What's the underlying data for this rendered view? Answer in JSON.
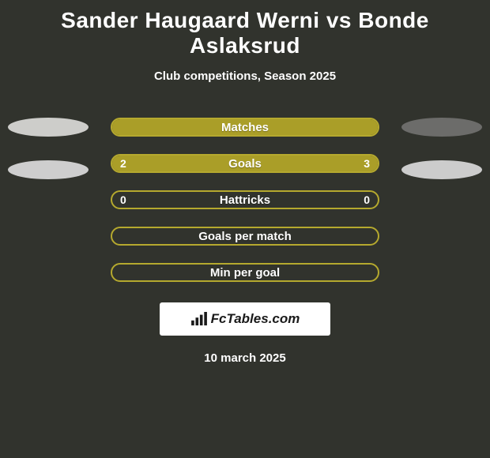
{
  "title": "Sander Haugaard Werni vs Bonde Aslaksrud",
  "subtitle": "Club competitions, Season 2025",
  "date": "10 march 2025",
  "watermark_text": "FcTables.com",
  "colors": {
    "bg": "#31332d",
    "ellipse_left_top": "#cdcdca",
    "ellipse_left_bottom": "#cecece",
    "ellipse_right_top": "#6c6c6a",
    "ellipse_right_bottom": "#cccccc",
    "bar_fill": "#aa9e28",
    "bar_border": "#b5a92e",
    "text": "#ffffff"
  },
  "left_ellipses": [
    {
      "color": "#cdcdca"
    },
    {
      "color": "#cecece"
    }
  ],
  "right_ellipses": [
    {
      "color": "#6c6c6a"
    },
    {
      "color": "#cccccc"
    }
  ],
  "bars": [
    {
      "label": "Matches",
      "left_value": "",
      "right_value": "",
      "left_pct": 100,
      "right_pct": 0,
      "fill_color": "#aa9e28",
      "border_color": "#b5a92e"
    },
    {
      "label": "Goals",
      "left_value": "2",
      "right_value": "3",
      "left_pct": 40,
      "right_pct": 60,
      "fill_color": "#aa9e28",
      "border_color": "#b5a92e"
    },
    {
      "label": "Hattricks",
      "left_value": "0",
      "right_value": "0",
      "left_pct": 0,
      "right_pct": 0,
      "fill_color": "#aa9e28",
      "border_color": "#b5a92e"
    },
    {
      "label": "Goals per match",
      "left_value": "",
      "right_value": "",
      "left_pct": 0,
      "right_pct": 0,
      "fill_color": "#aa9e28",
      "border_color": "#b5a92e"
    },
    {
      "label": "Min per goal",
      "left_value": "",
      "right_value": "",
      "left_pct": 0,
      "right_pct": 0,
      "fill_color": "#aa9e28",
      "border_color": "#b5a92e"
    }
  ]
}
